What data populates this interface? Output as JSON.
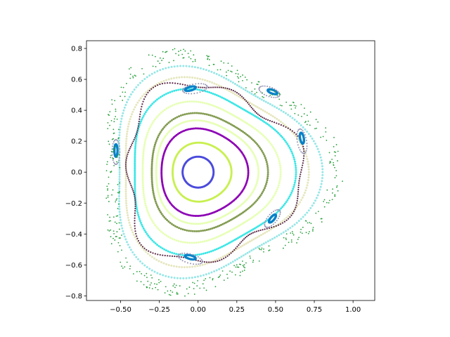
{
  "chart_data": {
    "type": "scatter",
    "title": "",
    "xlabel": "",
    "ylabel": "",
    "xlim": [
      -0.72,
      1.14
    ],
    "ylim": [
      -0.83,
      0.85
    ],
    "xticks": [
      -0.5,
      -0.25,
      0.0,
      0.25,
      0.5,
      0.75,
      1.0
    ],
    "xtick_labels": [
      "−0.50",
      "−0.25",
      "0.00",
      "0.25",
      "0.50",
      "0.75",
      "1.00"
    ],
    "yticks": [
      -0.8,
      -0.6,
      -0.4,
      -0.2,
      0.0,
      0.2,
      0.4,
      0.6,
      0.8
    ],
    "ytick_labels": [
      "−0.8",
      "−0.6",
      "−0.4",
      "−0.2",
      "0.0",
      "0.2",
      "0.4",
      "0.6",
      "0.8"
    ],
    "grid": false,
    "legend": "none",
    "curves": [
      {
        "kind": "ring",
        "color": "#4b4bdc",
        "center": [
          0.0,
          0.0
        ],
        "scale": 0.1,
        "tri": 0.0,
        "rot": 0.0,
        "n": 110
      },
      {
        "kind": "ring",
        "color": "#c8f050",
        "center": [
          0.02,
          0.0
        ],
        "scale": 0.19,
        "tri": 0.03,
        "rot": 0.0,
        "n": 150
      },
      {
        "kind": "ring",
        "color": "#8c00b4",
        "center": [
          0.03,
          0.0
        ],
        "scale": 0.28,
        "tri": 0.05,
        "rot": 0.0,
        "n": 170
      },
      {
        "kind": "ring",
        "color": "#e6ffb4",
        "center": [
          0.04,
          0.0
        ],
        "scale": 0.33,
        "tri": 0.06,
        "rot": 0.0,
        "n": 180
      },
      {
        "kind": "ring",
        "color": "#829b50",
        "center": [
          0.05,
          0.0
        ],
        "scale": 0.375,
        "tri": 0.07,
        "rot": 0.0,
        "n": 190
      },
      {
        "kind": "ring",
        "color": "#e6ffb4",
        "center": [
          0.05,
          0.0
        ],
        "scale": 0.445,
        "tri": 0.085,
        "rot": 0.0,
        "n": 210
      },
      {
        "kind": "ring",
        "color": "#3ce6e6",
        "center": [
          0.06,
          0.0
        ],
        "scale": 0.52,
        "tri": 0.1,
        "rot": 0.0,
        "n": 260
      },
      {
        "kind": "ring",
        "color": "#e6e6be",
        "center": [
          0.06,
          0.0
        ],
        "scale": 0.59,
        "tri": 0.11,
        "rot": 0.0,
        "n": 240
      },
      {
        "kind": "ring",
        "color": "#96e6e6",
        "center": [
          0.07,
          0.0
        ],
        "scale": 0.655,
        "tri": 0.12,
        "rot": 0.0,
        "n": 240
      },
      {
        "kind": "ring",
        "color": "#5a2846",
        "center": [
          0.07,
          0.0
        ],
        "scale": 0.565,
        "tri": 0.1,
        "rot": 0.0,
        "n": 260,
        "dotted": true,
        "lobes": 7,
        "lobeAmp": 0.055
      },
      {
        "kind": "island",
        "color": "#0a82c8",
        "center": [
          -0.05,
          0.54
        ],
        "size": [
          0.035,
          0.012
        ],
        "angle": 15
      },
      {
        "kind": "island",
        "color": "#0a82c8",
        "center": [
          0.48,
          0.52
        ],
        "size": [
          0.032,
          0.012
        ],
        "angle": -20
      },
      {
        "kind": "island",
        "color": "#0a82c8",
        "center": [
          0.67,
          0.22
        ],
        "size": [
          0.012,
          0.035
        ],
        "angle": 10
      },
      {
        "kind": "island",
        "color": "#0a82c8",
        "center": [
          0.48,
          -0.3
        ],
        "size": [
          0.032,
          0.012
        ],
        "angle": 50
      },
      {
        "kind": "island",
        "color": "#0a82c8",
        "center": [
          -0.05,
          -0.55
        ],
        "size": [
          0.035,
          0.012
        ],
        "angle": -15
      },
      {
        "kind": "island",
        "color": "#0a82c8",
        "center": [
          -0.53,
          0.14
        ],
        "size": [
          0.01,
          0.04
        ],
        "angle": 0
      },
      {
        "kind": "island-dots",
        "color": "#9696b4",
        "center": [
          -0.02,
          0.54
        ],
        "size": [
          0.08,
          0.03
        ],
        "angle": 10
      },
      {
        "kind": "island-dots",
        "color": "#9696b4",
        "center": [
          0.46,
          0.52
        ],
        "size": [
          0.07,
          0.03
        ],
        "angle": -20
      },
      {
        "kind": "island-dots",
        "color": "#9696b4",
        "center": [
          0.67,
          0.2
        ],
        "size": [
          0.03,
          0.08
        ],
        "angle": 10
      },
      {
        "kind": "island-dots",
        "color": "#9696b4",
        "center": [
          0.48,
          -0.3
        ],
        "size": [
          0.07,
          0.03
        ],
        "angle": 50
      },
      {
        "kind": "island-dots",
        "color": "#9696b4",
        "center": [
          -0.05,
          -0.56
        ],
        "size": [
          0.08,
          0.03
        ],
        "angle": -15
      },
      {
        "kind": "island-dots",
        "color": "#9696b4",
        "center": [
          -0.53,
          0.13
        ],
        "size": [
          0.025,
          0.08
        ],
        "angle": 0
      },
      {
        "kind": "chaos",
        "color": "#28a03c",
        "center": [
          0.08,
          0.0
        ],
        "scale": 0.72,
        "tri": 0.13,
        "n": 420,
        "spread": 0.045
      }
    ]
  }
}
